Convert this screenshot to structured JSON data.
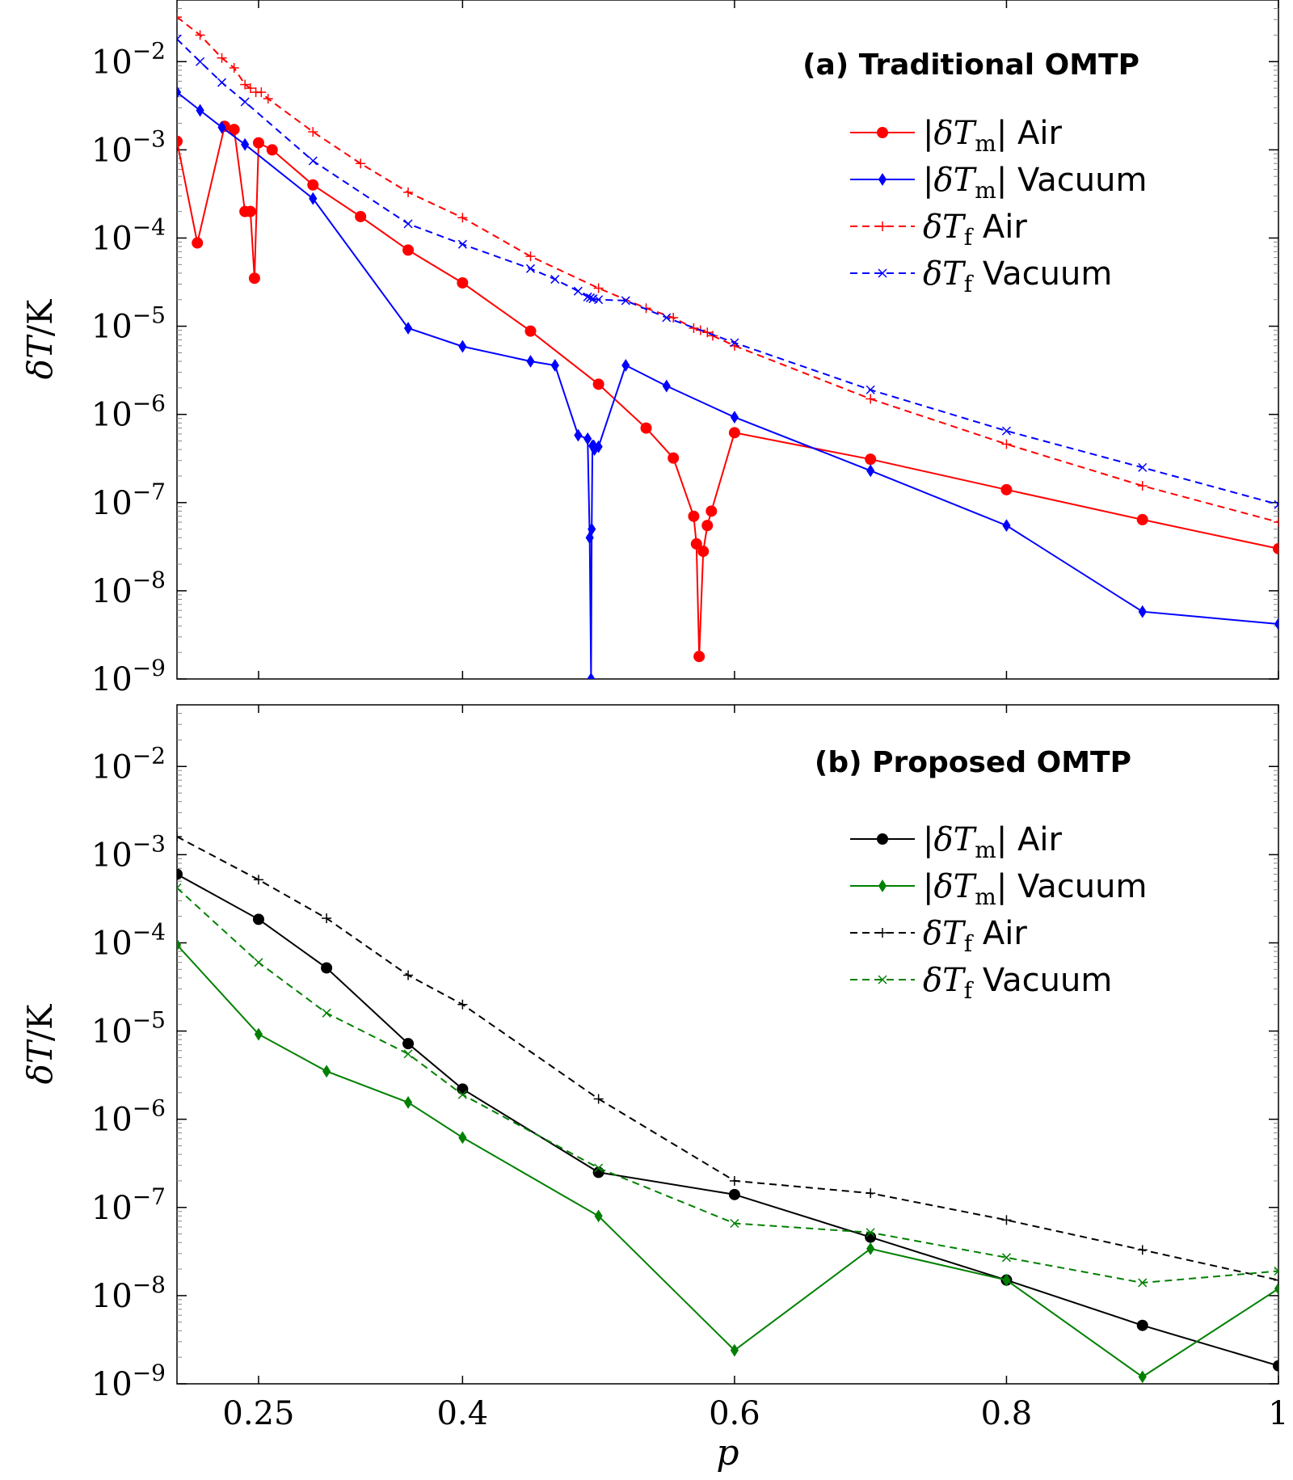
{
  "chart_data": [
    {
      "type": "line",
      "title": "(a) Traditional OMTP",
      "xlabel": "",
      "ylabel": "δT/K",
      "yscale": "log",
      "xlim": [
        0.19,
        1.0
      ],
      "ylim": [
        1e-09,
        0.05
      ],
      "yticks": [
        "10-9",
        "10-8",
        "10-7",
        "10-6",
        "10-5",
        "10-4",
        "10-3",
        "10-2"
      ],
      "grid": false,
      "legend_position": "top-right",
      "series": [
        {
          "name": "|δTm| Air",
          "color": "#ff0000",
          "style": "solid",
          "marker": "circle",
          "x": [
            0.19,
            0.205,
            0.225,
            0.232,
            0.24,
            0.244,
            0.247,
            0.25,
            0.26,
            0.29,
            0.325,
            0.36,
            0.4,
            0.45,
            0.5,
            0.535,
            0.555,
            0.57,
            0.572,
            0.574,
            0.577,
            0.58,
            0.583,
            0.6,
            0.7,
            0.8,
            0.9,
            1.0
          ],
          "values": [
            0.00125,
            8.8e-05,
            0.00185,
            0.0017,
            0.0002,
            0.0002,
            3.5e-05,
            0.0012,
            0.001,
            0.0004,
            0.000175,
            7.3e-05,
            3.1e-05,
            8.8e-06,
            2.2e-06,
            7e-07,
            3.2e-07,
            7e-08,
            3.4e-08,
            1.8e-09,
            2.8e-08,
            5.5e-08,
            8e-08,
            6.2e-07,
            3.1e-07,
            1.4e-07,
            6.4e-08,
            3e-08
          ]
        },
        {
          "name": "|δTm| Vacuum",
          "color": "#0000ff",
          "style": "solid",
          "marker": "diamond",
          "x": [
            0.19,
            0.207,
            0.223,
            0.24,
            0.29,
            0.36,
            0.4,
            0.45,
            0.468,
            0.485,
            0.492,
            0.4935,
            0.4945,
            0.495,
            0.4955,
            0.4965,
            0.497,
            0.5,
            0.52,
            0.55,
            0.6,
            0.7,
            0.8,
            0.9,
            1.0
          ],
          "values": [
            0.0045,
            0.0028,
            0.0018,
            0.00115,
            0.00028,
            9.5e-06,
            5.9e-06,
            4e-06,
            3.6e-06,
            5.8e-07,
            5.3e-07,
            4e-08,
            1e-09,
            5e-08,
            4.4e-07,
            4.4e-07,
            4e-07,
            4.3e-07,
            3.6e-06,
            2.1e-06,
            9.3e-07,
            2.3e-07,
            5.5e-08,
            5.8e-09,
            4.2e-09
          ]
        },
        {
          "name": "δTf Air",
          "color": "#ff0000",
          "style": "dashed",
          "marker": "plus",
          "x": [
            0.19,
            0.207,
            0.223,
            0.232,
            0.24,
            0.244,
            0.248,
            0.252,
            0.257,
            0.29,
            0.325,
            0.36,
            0.4,
            0.45,
            0.5,
            0.535,
            0.555,
            0.57,
            0.575,
            0.58,
            0.584,
            0.6,
            0.7,
            0.8,
            0.9,
            1.0
          ],
          "values": [
            0.032,
            0.02,
            0.011,
            0.0085,
            0.0055,
            0.005,
            0.0045,
            0.0045,
            0.0038,
            0.0016,
            0.0007,
            0.00033,
            0.00017,
            6.2e-05,
            2.7e-05,
            1.6e-05,
            1.25e-05,
            9.5e-06,
            9e-06,
            8.5e-06,
            7.8e-06,
            6e-06,
            1.5e-06,
            4.6e-07,
            1.55e-07,
            6e-08
          ]
        },
        {
          "name": "δTf Vacuum",
          "color": "#0000ff",
          "style": "dashed",
          "marker": "cross",
          "x": [
            0.19,
            0.207,
            0.223,
            0.24,
            0.29,
            0.36,
            0.4,
            0.45,
            0.468,
            0.485,
            0.492,
            0.494,
            0.496,
            0.5,
            0.52,
            0.55,
            0.6,
            0.7,
            0.8,
            0.9,
            1.0
          ],
          "values": [
            0.018,
            0.01,
            0.0058,
            0.0035,
            0.00075,
            0.000145,
            8.5e-05,
            4.5e-05,
            3.4e-05,
            2.5e-05,
            2.15e-05,
            2.1e-05,
            2.05e-05,
            2e-05,
            1.95e-05,
            1.25e-05,
            6.5e-06,
            1.9e-06,
            6.5e-07,
            2.5e-07,
            9.5e-08
          ]
        }
      ]
    },
    {
      "type": "line",
      "title": "(b) Proposed OMTP",
      "xlabel": "p",
      "ylabel": "δT/K",
      "yscale": "log",
      "xlim": [
        0.19,
        1.0
      ],
      "ylim": [
        1e-09,
        0.05
      ],
      "xticks": [
        "0.25",
        "0.4",
        "0.6",
        "0.8",
        "1"
      ],
      "yticks": [
        "10-9",
        "10-8",
        "10-7",
        "10-6",
        "10-5",
        "10-4",
        "10-3",
        "10-2"
      ],
      "grid": false,
      "legend_position": "top-right",
      "series": [
        {
          "name": "|δTm| Air",
          "color": "#000000",
          "style": "solid",
          "marker": "circle",
          "x": [
            0.19,
            0.25,
            0.3,
            0.36,
            0.4,
            0.5,
            0.6,
            0.7,
            0.8,
            0.9,
            1.0
          ],
          "values": [
            0.0006,
            0.000185,
            5.2e-05,
            7.2e-06,
            2.2e-06,
            2.5e-07,
            1.4e-07,
            4.6e-08,
            1.5e-08,
            4.6e-09,
            1.6e-09
          ]
        },
        {
          "name": "|δTm| Vacuum",
          "color": "#008000",
          "style": "solid",
          "marker": "diamond",
          "x": [
            0.19,
            0.25,
            0.3,
            0.36,
            0.4,
            0.5,
            0.6,
            0.7,
            0.8,
            0.9,
            1.0
          ],
          "values": [
            9.5e-05,
            9.2e-06,
            3.5e-06,
            1.55e-06,
            6.2e-07,
            8e-08,
            2.4e-09,
            3.4e-08,
            1.5e-08,
            1.2e-09,
            1.2e-08
          ]
        },
        {
          "name": "δTf Air",
          "color": "#000000",
          "style": "dashed",
          "marker": "plus",
          "x": [
            0.19,
            0.25,
            0.3,
            0.36,
            0.4,
            0.5,
            0.6,
            0.7,
            0.8,
            0.9,
            1.0
          ],
          "values": [
            0.0016,
            0.00052,
            0.00019,
            4.3e-05,
            2e-05,
            1.7e-06,
            2e-07,
            1.45e-07,
            7.2e-08,
            3.3e-08,
            1.5e-08
          ]
        },
        {
          "name": "δTf Vacuum",
          "color": "#008000",
          "style": "dashed",
          "marker": "cross",
          "x": [
            0.19,
            0.25,
            0.3,
            0.36,
            0.4,
            0.5,
            0.6,
            0.7,
            0.8,
            0.9,
            1.0
          ],
          "values": [
            0.00042,
            6e-05,
            1.6e-05,
            5.5e-06,
            1.9e-06,
            2.8e-07,
            6.6e-08,
            5.2e-08,
            2.7e-08,
            1.4e-08,
            1.9e-08
          ]
        }
      ]
    }
  ]
}
